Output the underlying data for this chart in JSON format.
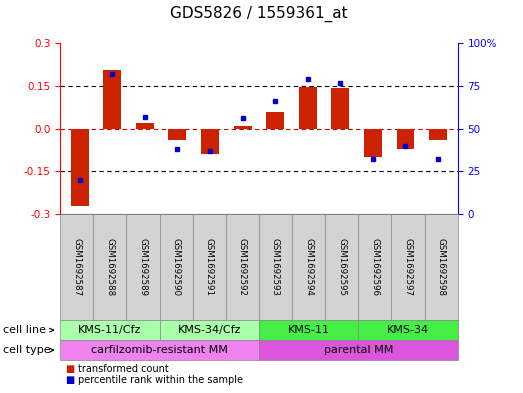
{
  "title": "GDS5826 / 1559361_at",
  "samples": [
    "GSM1692587",
    "GSM1692588",
    "GSM1692589",
    "GSM1692590",
    "GSM1692591",
    "GSM1692592",
    "GSM1692593",
    "GSM1692594",
    "GSM1692595",
    "GSM1692596",
    "GSM1692597",
    "GSM1692598"
  ],
  "transformed_count": [
    -0.27,
    0.205,
    0.02,
    -0.04,
    -0.09,
    0.01,
    0.06,
    0.148,
    0.143,
    -0.1,
    -0.07,
    -0.04
  ],
  "percentile_rank": [
    20,
    82,
    57,
    38,
    37,
    56,
    66,
    79,
    77,
    32,
    40,
    32
  ],
  "ylim_left": [
    -0.3,
    0.3
  ],
  "ylim_right": [
    0,
    100
  ],
  "yticks_left": [
    -0.3,
    -0.15,
    0.0,
    0.15,
    0.3
  ],
  "yticks_right": [
    0,
    25,
    50,
    75,
    100
  ],
  "ytick_labels_right": [
    "0",
    "25",
    "50",
    "75",
    "100%"
  ],
  "hlines": [
    -0.15,
    0.0,
    0.15
  ],
  "cell_line_groups": [
    {
      "label": "KMS-11/Cfz",
      "start": 0,
      "end": 3,
      "color": "#aaffaa"
    },
    {
      "label": "KMS-34/Cfz",
      "start": 3,
      "end": 6,
      "color": "#aaffaa"
    },
    {
      "label": "KMS-11",
      "start": 6,
      "end": 9,
      "color": "#44ee44"
    },
    {
      "label": "KMS-34",
      "start": 9,
      "end": 12,
      "color": "#44ee44"
    }
  ],
  "cell_type_groups": [
    {
      "label": "carfilzomib-resistant MM",
      "start": 0,
      "end": 6,
      "color": "#ee82ee"
    },
    {
      "label": "parental MM",
      "start": 6,
      "end": 12,
      "color": "#dd55dd"
    }
  ],
  "bar_color": "#cc2200",
  "scatter_color": "#0000cc",
  "zero_line_color": "#cc0000",
  "dotted_line_color": "#000000",
  "background_color": "#ffffff",
  "cell_line_row_label": "cell line",
  "cell_type_row_label": "cell type",
  "legend_bar_label": "transformed count",
  "legend_scatter_label": "percentile rank within the sample",
  "title_fontsize": 11,
  "tick_fontsize": 7.5,
  "sample_fontsize": 6.2,
  "label_fontsize": 8,
  "group_fontsize": 8
}
